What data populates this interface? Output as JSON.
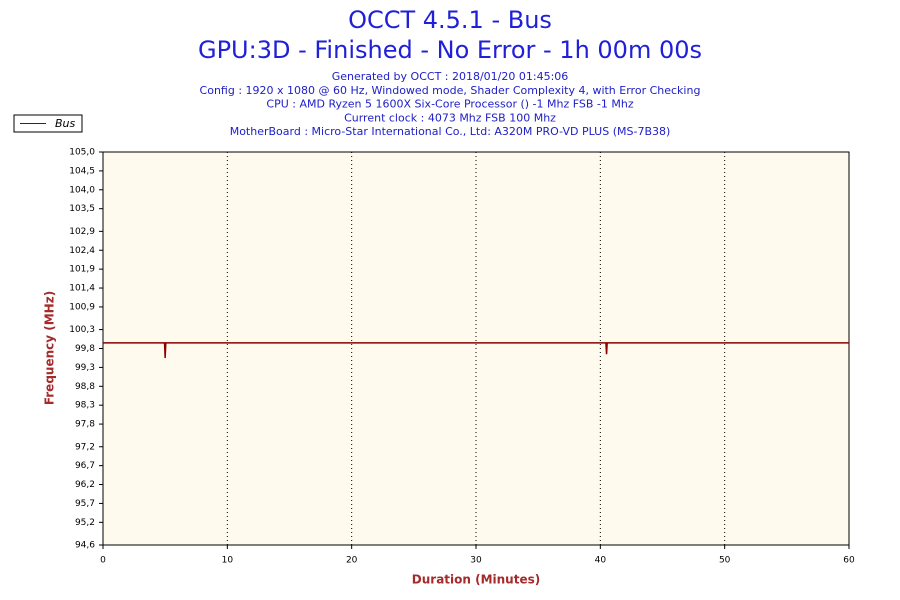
{
  "chart_data": {
    "type": "line",
    "title": "OCCT 4.5.1 - Bus",
    "subtitle": "GPU:3D - Finished - No Error - 1h 00m 00s",
    "info": [
      "Generated by OCCT : 2018/01/20 01:45:06",
      "Config : 1920 x 1080 @ 60 Hz, Windowed mode, Shader Complexity 4, with Error Checking",
      "CPU : AMD Ryzen 5 1600X Six-Core Processor () -1 Mhz FSB -1 Mhz",
      "Current clock : 4073 Mhz FSB 100 Mhz",
      "MotherBoard : Micro-Star International Co., Ltd: A320M PRO-VD PLUS (MS-7B38)"
    ],
    "xlabel": "Duration (Minutes)",
    "ylabel": "Frequency (MHz)",
    "x": [
      0,
      4.95,
      5,
      5.05,
      40.45,
      40.5,
      40.55,
      60
    ],
    "series": [
      {
        "name": "Bus",
        "color": "#8b0000",
        "values": [
          99.95,
          99.95,
          99.55,
          99.95,
          99.95,
          99.65,
          99.95,
          99.95
        ]
      }
    ],
    "xlim": [
      0,
      60
    ],
    "xticks": [
      0,
      10,
      20,
      30,
      40,
      50,
      60
    ],
    "ylim": [
      94.6,
      105.0
    ],
    "yticks": [
      {
        "value": 105.0,
        "label": "105,0"
      },
      {
        "value": 104.5,
        "label": "104,5"
      },
      {
        "value": 104.0,
        "label": "104,0"
      },
      {
        "value": 103.5,
        "label": "103,5"
      },
      {
        "value": 102.9,
        "label": "102,9"
      },
      {
        "value": 102.4,
        "label": "102,4"
      },
      {
        "value": 101.9,
        "label": "101,9"
      },
      {
        "value": 101.4,
        "label": "101,4"
      },
      {
        "value": 100.9,
        "label": "100,9"
      },
      {
        "value": 100.3,
        "label": "100,3"
      },
      {
        "value": 99.8,
        "label": "99,8"
      },
      {
        "value": 99.3,
        "label": "99,3"
      },
      {
        "value": 98.8,
        "label": "98,8"
      },
      {
        "value": 98.3,
        "label": "98,3"
      },
      {
        "value": 97.8,
        "label": "97,8"
      },
      {
        "value": 97.2,
        "label": "97,2"
      },
      {
        "value": 96.7,
        "label": "96,7"
      },
      {
        "value": 96.2,
        "label": "96,2"
      },
      {
        "value": 95.7,
        "label": "95,7"
      },
      {
        "value": 95.2,
        "label": "95,2"
      },
      {
        "value": 94.6,
        "label": "94,6"
      }
    ],
    "xgrid": true,
    "legend": "top-left",
    "plot_background": "#fffaee"
  }
}
